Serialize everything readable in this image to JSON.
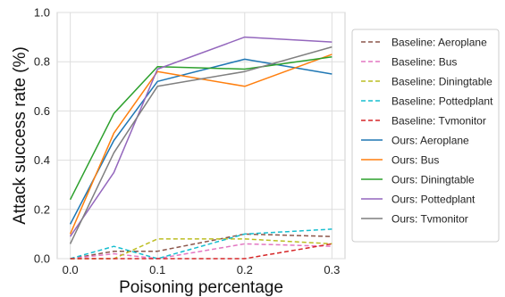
{
  "chart_data": {
    "type": "line",
    "title": "",
    "xlabel": "Poisoning percentage",
    "ylabel": "Attack success rate (%)",
    "x": [
      0.0,
      0.05,
      0.1,
      0.2,
      0.3
    ],
    "xticks": [
      0.0,
      0.1,
      0.2,
      0.3
    ],
    "xtick_labels": [
      "0.0",
      "0.1",
      "0.2",
      "0.3"
    ],
    "yticks": [
      0.0,
      0.2,
      0.4,
      0.6,
      0.8,
      1.0
    ],
    "ytick_labels": [
      "0.0",
      "0.2",
      "0.4",
      "0.6",
      "0.8",
      "1.0"
    ],
    "xlim": [
      -0.015,
      0.315
    ],
    "ylim": [
      0.0,
      1.0
    ],
    "grid": true,
    "legend_position": "right, outside plot",
    "series": [
      {
        "name": "Baseline: Aeroplane",
        "color": "#8c564b",
        "dashed": true,
        "values": [
          0.0,
          0.03,
          0.03,
          0.1,
          0.09
        ]
      },
      {
        "name": "Baseline: Bus",
        "color": "#e377c2",
        "dashed": true,
        "values": [
          0.0,
          0.02,
          0.0,
          0.06,
          0.05
        ]
      },
      {
        "name": "Baseline: Diningtable",
        "color": "#bcbd22",
        "dashed": true,
        "values": [
          0.0,
          0.0,
          0.08,
          0.08,
          0.06
        ]
      },
      {
        "name": "Baseline: Pottedplant",
        "color": "#17becf",
        "dashed": true,
        "values": [
          0.0,
          0.05,
          0.0,
          0.1,
          0.12
        ]
      },
      {
        "name": "Baseline: Tvmonitor",
        "color": "#d62728",
        "dashed": true,
        "values": [
          0.0,
          0.0,
          0.0,
          0.0,
          0.06
        ]
      },
      {
        "name": "Ours: Aeroplane",
        "color": "#1f77b4",
        "dashed": false,
        "values": [
          0.14,
          0.48,
          0.72,
          0.81,
          0.75
        ]
      },
      {
        "name": "Ours: Bus",
        "color": "#ff7f0e",
        "dashed": false,
        "values": [
          0.1,
          0.51,
          0.76,
          0.7,
          0.83
        ]
      },
      {
        "name": "Ours: Diningtable",
        "color": "#2ca02c",
        "dashed": false,
        "values": [
          0.24,
          0.59,
          0.78,
          0.77,
          0.82
        ]
      },
      {
        "name": "Ours: Pottedplant",
        "color": "#9467bd",
        "dashed": false,
        "values": [
          0.09,
          0.35,
          0.77,
          0.9,
          0.88
        ]
      },
      {
        "name": "Ours: Tvmonitor",
        "color": "#7f7f7f",
        "dashed": false,
        "values": [
          0.06,
          0.43,
          0.7,
          0.76,
          0.86
        ]
      }
    ]
  }
}
